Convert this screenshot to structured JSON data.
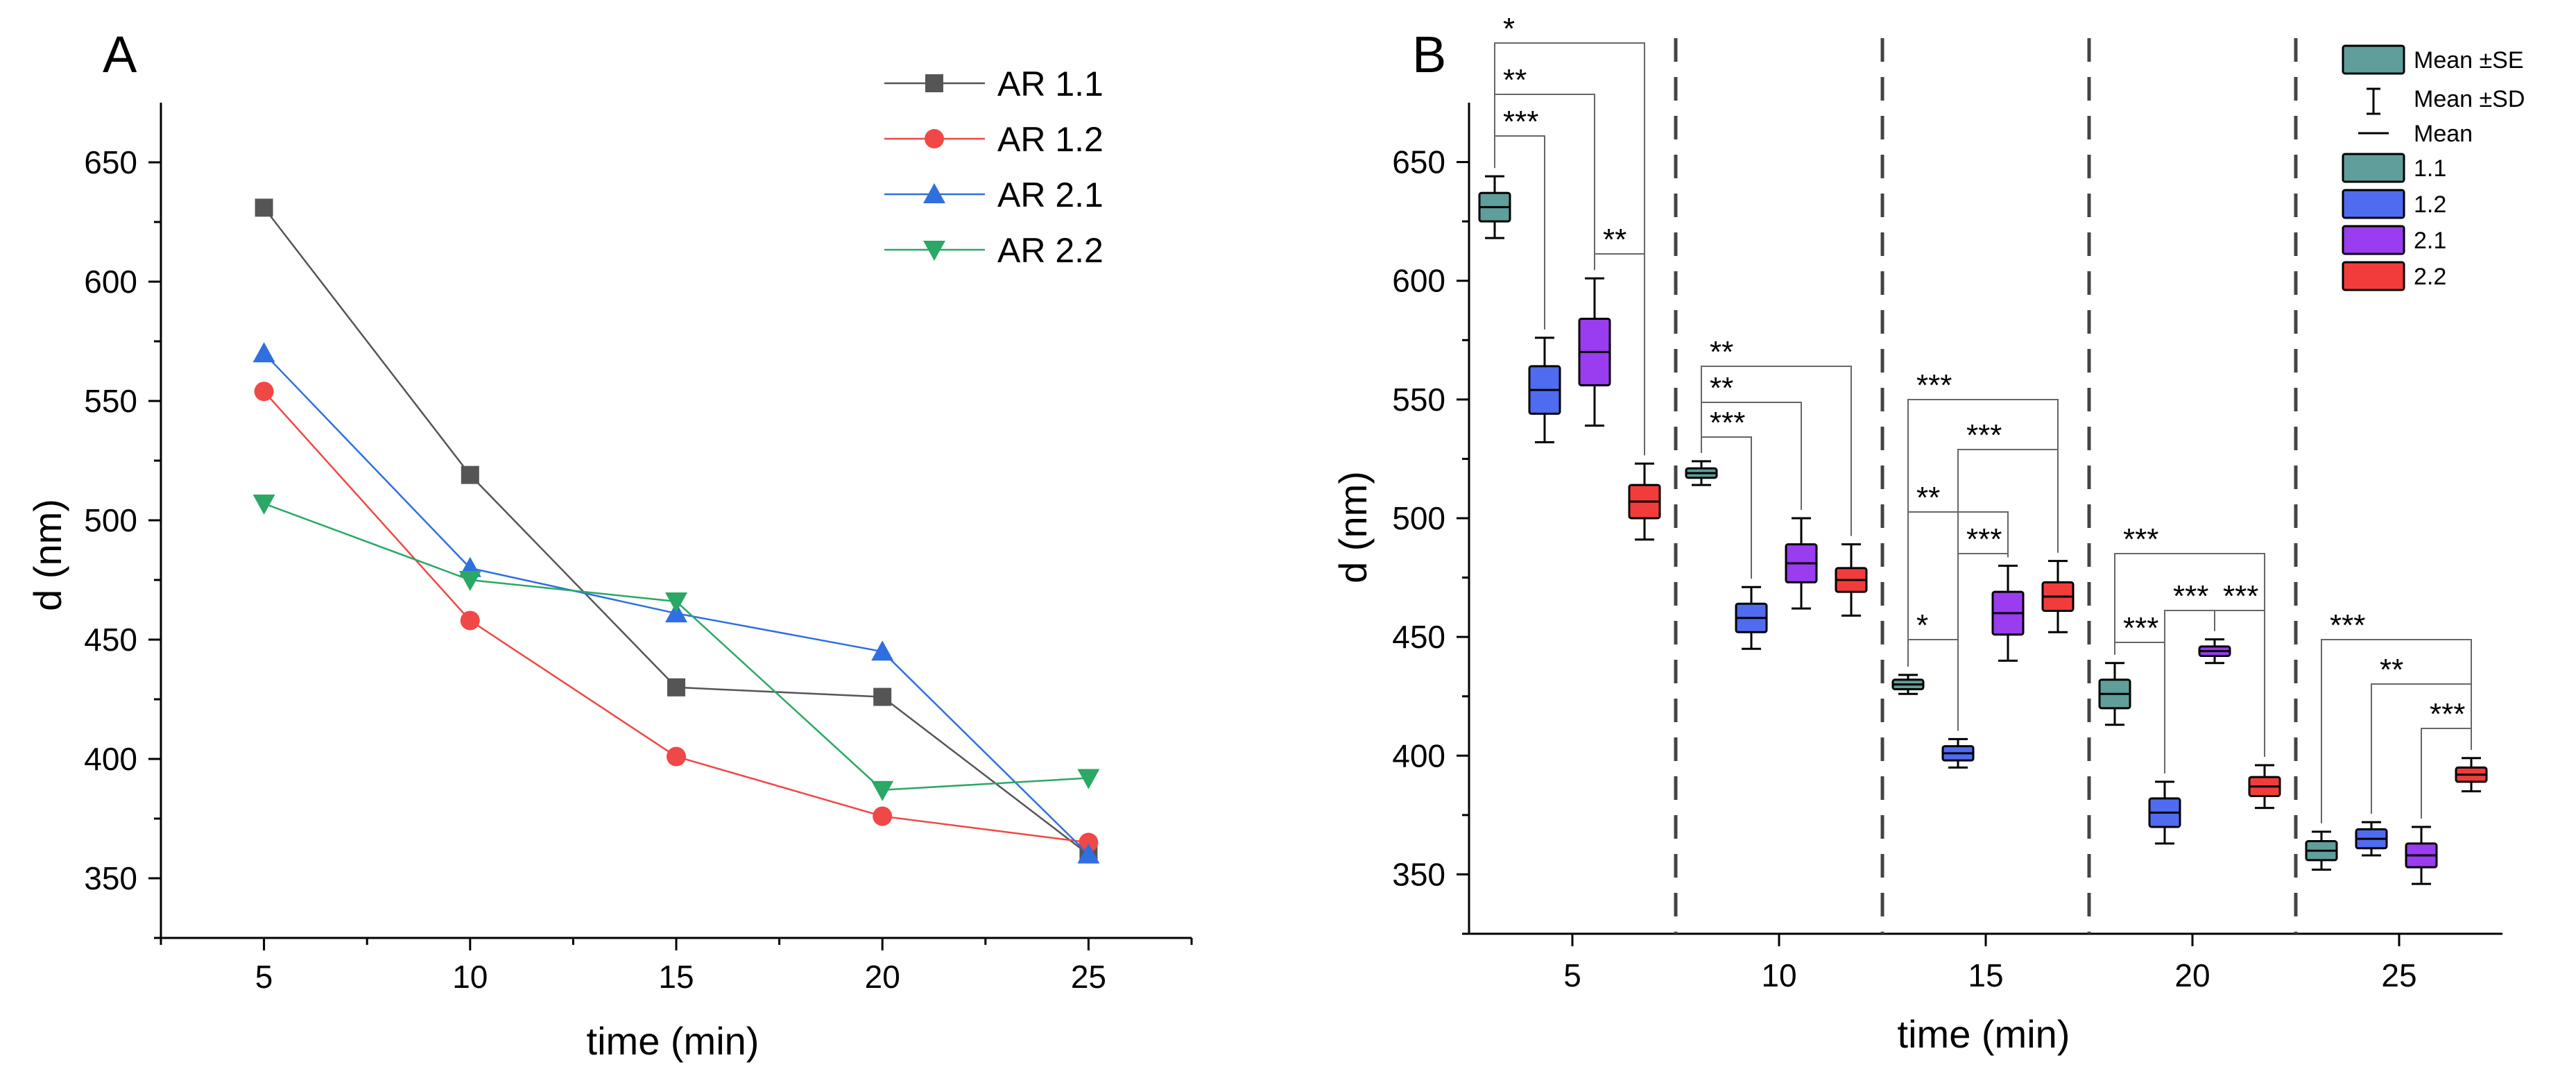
{
  "panels": {
    "a": {
      "label": "A"
    },
    "b": {
      "label": "B"
    }
  },
  "chart_data": [
    {
      "type": "line",
      "x": [
        5,
        10,
        15,
        20,
        25
      ],
      "xlabel": "time (min)",
      "ylabel": "d (nm)",
      "xlim": [
        2.5,
        27.5
      ],
      "ylim": [
        325,
        675
      ],
      "yticks": [
        350,
        400,
        450,
        500,
        550,
        600,
        650
      ],
      "xticks": [
        5,
        10,
        15,
        20,
        25
      ],
      "legend_position": "top-right",
      "grid": false,
      "series": [
        {
          "name": "AR 1.1",
          "values": [
            631,
            519,
            430,
            426,
            360
          ],
          "color": "#555555",
          "marker": "square"
        },
        {
          "name": "AR 1.2",
          "values": [
            554,
            458,
            401,
            376,
            365
          ],
          "color": "#f04747",
          "marker": "circle"
        },
        {
          "name": "AR 2.1",
          "values": [
            570,
            480,
            461,
            445,
            360
          ],
          "color": "#2f6fdf",
          "marker": "triangle-up"
        },
        {
          "name": "AR 2.2",
          "values": [
            507,
            475,
            466,
            387,
            392
          ],
          "color": "#2aa865",
          "marker": "triangle-down"
        }
      ]
    },
    {
      "type": "box",
      "categories": [
        5,
        10,
        15,
        20,
        25
      ],
      "xlabel": "time (min)",
      "ylabel": "d (nm)",
      "ylim": [
        325,
        675
      ],
      "yticks": [
        350,
        400,
        450,
        500,
        550,
        600,
        650
      ],
      "grid": false,
      "legend_position": "top-right",
      "legend": {
        "stat_items": [
          "Mean ±SE",
          "Mean ±SD",
          "Mean"
        ],
        "groups": [
          {
            "name": "1.1",
            "color": "#5f9e9a"
          },
          {
            "name": "1.2",
            "color": "#4f6cf0"
          },
          {
            "name": "2.1",
            "color": "#9a3cf0"
          },
          {
            "name": "2.2",
            "color": "#f23c3c"
          }
        ]
      },
      "series": [
        {
          "name": "1.1",
          "mean": [
            631,
            519,
            430,
            426,
            360
          ],
          "se": [
            6,
            2,
            2,
            6,
            4
          ],
          "sd": [
            13,
            5,
            4,
            13,
            8
          ]
        },
        {
          "name": "1.2",
          "mean": [
            554,
            458,
            401,
            376,
            365
          ],
          "se": [
            10,
            6,
            3,
            6,
            4
          ],
          "sd": [
            22,
            13,
            6,
            13,
            7
          ]
        },
        {
          "name": "2.1",
          "mean": [
            570,
            481,
            460,
            444,
            358
          ],
          "se": [
            14,
            8,
            9,
            2,
            5
          ],
          "sd": [
            31,
            19,
            20,
            5,
            12
          ]
        },
        {
          "name": "2.2",
          "mean": [
            507,
            474,
            467,
            387,
            392
          ],
          "se": [
            7,
            5,
            6,
            4,
            3
          ],
          "sd": [
            16,
            15,
            15,
            9,
            7
          ]
        }
      ],
      "significance": [
        {
          "time": 5,
          "from": "1.1",
          "to": "2.2",
          "stars": "*",
          "level": 0
        },
        {
          "time": 5,
          "from": "1.1",
          "to": "2.1",
          "stars": "**",
          "level": 1
        },
        {
          "time": 5,
          "from": "1.1",
          "to": "1.2",
          "stars": "***",
          "level": 2
        },
        {
          "time": 5,
          "from": "2.1",
          "to": "2.2",
          "stars": "**",
          "level": 3
        },
        {
          "time": 10,
          "from": "1.1",
          "to": "2.2",
          "stars": "**",
          "level": 0
        },
        {
          "time": 10,
          "from": "1.1",
          "to": "2.1",
          "stars": "**",
          "level": 1
        },
        {
          "time": 10,
          "from": "1.1",
          "to": "1.2",
          "stars": "***",
          "level": 2
        },
        {
          "time": 15,
          "from": "1.1",
          "to": "2.2",
          "stars": "***",
          "level": 0
        },
        {
          "time": 15,
          "from": "1.2",
          "to": "2.2",
          "stars": "***",
          "level": 1
        },
        {
          "time": 15,
          "from": "1.1",
          "to": "2.1",
          "stars": "**",
          "level": 2
        },
        {
          "time": 15,
          "from": "1.2",
          "to": "2.1",
          "stars": "***",
          "level": 3
        },
        {
          "time": 15,
          "from": "1.1",
          "to": "1.2",
          "stars": "*",
          "level": 4
        },
        {
          "time": 20,
          "from": "1.1",
          "to": "2.2",
          "stars": "***",
          "level": 0
        },
        {
          "time": 20,
          "from": "1.2",
          "to": "2.1",
          "stars": "***",
          "level": 1
        },
        {
          "time": 20,
          "from": "2.1",
          "to": "2.2",
          "stars": "***",
          "level": 1
        },
        {
          "time": 20,
          "from": "1.1",
          "to": "1.2",
          "stars": "***",
          "level": 2
        },
        {
          "time": 25,
          "from": "1.1",
          "to": "2.2",
          "stars": "***",
          "level": 0
        },
        {
          "time": 25,
          "from": "1.2",
          "to": "2.2",
          "stars": "**",
          "level": 1
        },
        {
          "time": 25,
          "from": "2.1",
          "to": "2.2",
          "stars": "***",
          "level": 2
        }
      ]
    }
  ]
}
